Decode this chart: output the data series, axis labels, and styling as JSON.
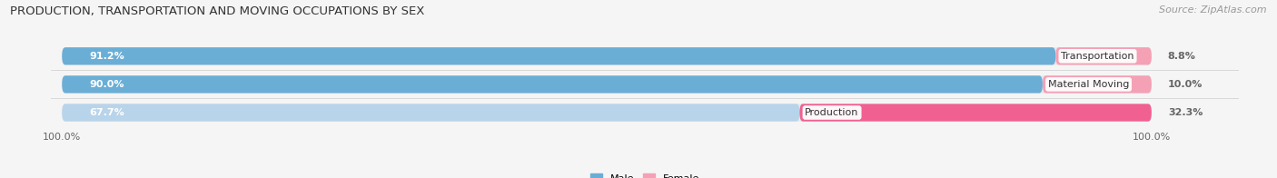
{
  "title": "PRODUCTION, TRANSPORTATION AND MOVING OCCUPATIONS BY SEX",
  "source": "Source: ZipAtlas.com",
  "categories": [
    "Transportation",
    "Material Moving",
    "Production"
  ],
  "male_pct": [
    91.2,
    90.0,
    67.7
  ],
  "female_pct": [
    8.8,
    10.0,
    32.3
  ],
  "male_colors": [
    "#6aaed6",
    "#6aaed6",
    "#b8d4ea"
  ],
  "female_colors": [
    "#f4a0b5",
    "#f4a0b5",
    "#f06090"
  ],
  "bg_color": "#e8e8e8",
  "row_bg_color": "#f0f0f0",
  "fig_bg_color": "#f5f5f5",
  "title_color": "#333333",
  "source_color": "#999999",
  "male_label_color": "#ffffff",
  "female_label_outside_color": "#666666",
  "category_label_color": "#333333",
  "title_fontsize": 9.5,
  "source_fontsize": 8,
  "bar_label_fontsize": 8,
  "cat_label_fontsize": 8,
  "tick_fontsize": 8,
  "tick_color": "#666666",
  "tick_label": "100.0%",
  "legend_male_color": "#6aaed6",
  "legend_female_color": "#f4a0b5"
}
